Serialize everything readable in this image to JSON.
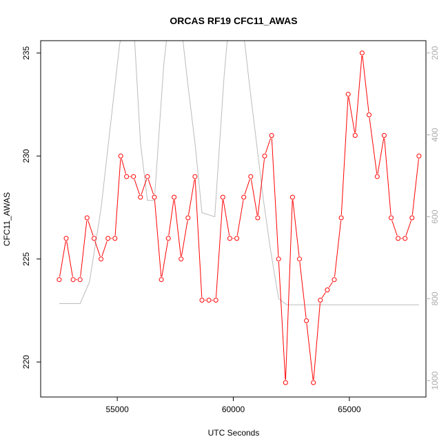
{
  "chart_data": {
    "type": "line",
    "title": "ORCAS RF19 CFC11_AWAS",
    "xlabel": "UTC Seconds",
    "ylabel": "CFC11_AWAS",
    "xlim": [
      51700,
      68300
    ],
    "ylim": [
      218.3,
      235.6
    ],
    "x_ticks": [
      55000,
      60000,
      65000
    ],
    "y_ticks": [
      220,
      225,
      230,
      235
    ],
    "y2_ticks": [
      200,
      400,
      600,
      800,
      1000
    ],
    "y2lim": [
      1040,
      170
    ],
    "series": [
      {
        "role": "primary",
        "color": "#ff0000",
        "marker": "open-circle",
        "x": [
          52500,
          52800,
          53100,
          53400,
          53700,
          54000,
          54300,
          54600,
          54900,
          55150,
          55400,
          55700,
          56000,
          56300,
          56600,
          56900,
          57200,
          57450,
          57750,
          58050,
          58350,
          58650,
          58950,
          59250,
          59550,
          59850,
          60150,
          60450,
          60750,
          61050,
          61350,
          61650,
          61950,
          62250,
          62550,
          62850,
          63150,
          63450,
          63750,
          64050,
          64350,
          64650,
          64950,
          65250,
          65550,
          65850,
          66200,
          66500,
          66800,
          67100,
          67400,
          67700,
          68000
        ],
        "y": [
          224,
          226,
          224,
          224,
          227,
          226,
          225,
          226,
          226,
          230,
          229,
          229,
          228,
          229,
          228,
          224,
          226,
          228,
          225,
          227,
          229,
          223,
          223,
          223,
          228,
          226,
          226,
          228,
          229,
          227,
          230,
          231,
          225,
          219,
          228,
          225,
          222,
          219,
          223,
          223.5,
          224,
          227,
          233,
          231,
          235,
          232,
          229,
          231,
          227,
          226,
          226,
          227,
          230
        ]
      },
      {
        "role": "secondary",
        "color": "#bbbbbb",
        "x": [
          52500,
          53400,
          53800,
          54300,
          54800,
          55100,
          55300,
          55700,
          56000,
          56300,
          56600,
          57000,
          57200,
          57400,
          57750,
          58050,
          58350,
          58650,
          59200,
          59600,
          59800,
          60000,
          60200,
          60400,
          60700,
          61000,
          61300,
          61600,
          61950,
          62300,
          68000
        ],
        "y": [
          812,
          812,
          760,
          580,
          330,
          180,
          120,
          120,
          420,
          560,
          560,
          230,
          130,
          130,
          130,
          280,
          420,
          590,
          600,
          260,
          130,
          130,
          130,
          130,
          280,
          420,
          560,
          680,
          800,
          815,
          815
        ]
      }
    ]
  }
}
